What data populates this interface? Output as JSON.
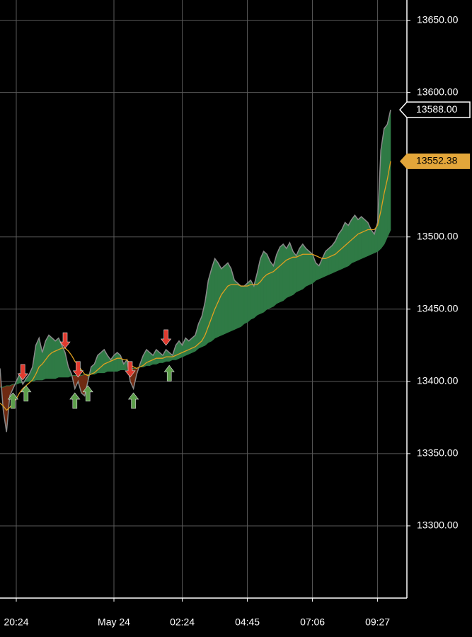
{
  "chart_data": {
    "type": "area",
    "categories": [
      null,
      null,
      null,
      null,
      null,
      "20:24",
      null,
      null,
      null,
      null,
      null,
      null,
      null,
      null,
      null,
      null,
      null,
      null,
      null,
      null,
      null,
      null,
      null,
      null,
      null,
      null,
      null,
      null,
      null,
      null,
      null,
      null,
      null,
      null,
      null,
      "May 24",
      null,
      null,
      null,
      null,
      null,
      null,
      null,
      null,
      null,
      null,
      null,
      null,
      null,
      null,
      null,
      null,
      null,
      null,
      null,
      null,
      "02:24",
      null,
      null,
      null,
      null,
      null,
      null,
      null,
      null,
      null,
      null,
      null,
      null,
      null,
      null,
      null,
      null,
      null,
      null,
      null,
      "04:45",
      null,
      null,
      null,
      null,
      null,
      null,
      null,
      null,
      null,
      null,
      null,
      null,
      null,
      null,
      null,
      null,
      null,
      null,
      null,
      "07:06",
      null,
      null,
      null,
      null,
      null,
      null,
      null,
      null,
      null,
      null,
      null,
      null,
      null,
      null,
      null,
      null,
      null,
      null,
      null,
      "09:27",
      null,
      null,
      null,
      null
    ],
    "series": [
      {
        "color": "#8a8a8a",
        "last_label": "13588.00",
        "values": [
          13409,
          13380,
          13365,
          13390,
          13395,
          13400,
          13405,
          13398,
          13402,
          13405,
          13410,
          13425,
          13430,
          13420,
          13428,
          13432,
          13430,
          13428,
          13430,
          13425,
          13420,
          13410,
          13405,
          13395,
          13400,
          13392,
          13390,
          13400,
          13410,
          13412,
          13418,
          13420,
          13422,
          13418,
          13415,
          13418,
          13420,
          13418,
          13412,
          13415,
          13400,
          13395,
          13405,
          13412,
          13418,
          13422,
          13420,
          13418,
          13422,
          13420,
          13418,
          13422,
          13420,
          13418,
          13425,
          13428,
          13425,
          13430,
          13428,
          13430,
          13432,
          13440,
          13445,
          13455,
          13470,
          13478,
          13485,
          13482,
          13478,
          13480,
          13482,
          13478,
          13470,
          13468,
          13466,
          13466,
          13468,
          13470,
          13466,
          13475,
          13485,
          13490,
          13488,
          13483,
          13480,
          13488,
          13493,
          13495,
          13492,
          13496,
          13490,
          13487,
          13492,
          13495,
          13492,
          13490,
          13488,
          13482,
          13480,
          13485,
          13490,
          13492,
          13494,
          13497,
          13502,
          13505,
          13510,
          13508,
          13512,
          13515,
          13512,
          13514,
          13512,
          13510,
          13505,
          13502,
          13510,
          13560,
          13575,
          13578,
          13588
        ]
      },
      {
        "color": "#e0a020",
        "values": [
          13385,
          13383,
          13380,
          13382,
          13385,
          13388,
          13392,
          13395,
          13397,
          13399,
          13401,
          13405,
          13410,
          13412,
          13415,
          13418,
          13420,
          13421,
          13422,
          13423,
          13423,
          13421,
          13418,
          13414,
          13411,
          13408,
          13405,
          13404,
          13405,
          13406,
          13408,
          13410,
          13412,
          13413,
          13414,
          13415,
          13416,
          13416,
          13415,
          13415,
          13412,
          13410,
          13409,
          13410,
          13411,
          13413,
          13414,
          13415,
          13416,
          13416,
          13416,
          13417,
          13417,
          13417,
          13418,
          13419,
          13420,
          13421,
          13422,
          13423,
          13424,
          13426,
          13428,
          13432,
          13438,
          13444,
          13450,
          13455,
          13460,
          13463,
          13466,
          13467,
          13467,
          13467,
          13466,
          13466,
          13466,
          13467,
          13467,
          13467,
          13469,
          13472,
          13474,
          13475,
          13476,
          13478,
          13480,
          13482,
          13484,
          13485,
          13486,
          13486,
          13487,
          13488,
          13488,
          13488,
          13488,
          13487,
          13486,
          13485,
          13485,
          13486,
          13487,
          13488,
          13490,
          13492,
          13494,
          13496,
          13498,
          13500,
          13502,
          13503,
          13504,
          13505,
          13505,
          13505,
          13508,
          13518,
          13530,
          13540,
          13552.38
        ]
      },
      {
        "color": "#2f7a45",
        "negative_color": "#6e2a12",
        "values": [
          13396,
          13396,
          13397,
          13397,
          13398,
          13398,
          13399,
          13399,
          13400,
          13400,
          13400,
          13401,
          13401,
          13401,
          13402,
          13402,
          13402,
          13402,
          13403,
          13403,
          13403,
          13403,
          13404,
          13404,
          13404,
          13404,
          13405,
          13405,
          13405,
          13405,
          13406,
          13406,
          13406,
          13407,
          13407,
          13407,
          13407,
          13408,
          13408,
          13408,
          13409,
          13409,
          13409,
          13410,
          13410,
          13411,
          13411,
          13412,
          13412,
          13413,
          13413,
          13414,
          13414,
          13415,
          13415,
          13416,
          13417,
          13418,
          13419,
          13420,
          13421,
          13423,
          13424,
          13425,
          13427,
          13428,
          13430,
          13431,
          13432,
          13433,
          13434,
          13435,
          13436,
          13437,
          13438,
          13440,
          13441,
          13443,
          13444,
          13446,
          13447,
          13448,
          13450,
          13451,
          13452,
          13454,
          13455,
          13456,
          13458,
          13459,
          13460,
          13462,
          13463,
          13464,
          13466,
          13467,
          13468,
          13470,
          13471,
          13472,
          13473,
          13474,
          13475,
          13476,
          13477,
          13478,
          13479,
          13480,
          13482,
          13483,
          13484,
          13485,
          13486,
          13487,
          13488,
          13489,
          13490,
          13492,
          13495,
          13500,
          13505
        ]
      }
    ],
    "sell_signals": [
      7,
      20,
      24,
      40,
      51
    ],
    "buy_signals": [
      4,
      8,
      23,
      27,
      41,
      52
    ],
    "sell_color": "#e03a2e",
    "buy_color": "#5c9e4a",
    "ylim": [
      13250,
      13664
    ],
    "yticks": [
      {
        "value": 13300,
        "label": "13300.00"
      },
      {
        "value": 13350,
        "label": "13350.00"
      },
      {
        "value": 13400,
        "label": "13400.00"
      },
      {
        "value": 13450,
        "label": "13450.00"
      },
      {
        "value": 13500,
        "label": "13500.00"
      },
      {
        "value": 13600,
        "label": "13600.00"
      },
      {
        "value": 13650,
        "label": "13650.00"
      }
    ],
    "grid": true
  }
}
